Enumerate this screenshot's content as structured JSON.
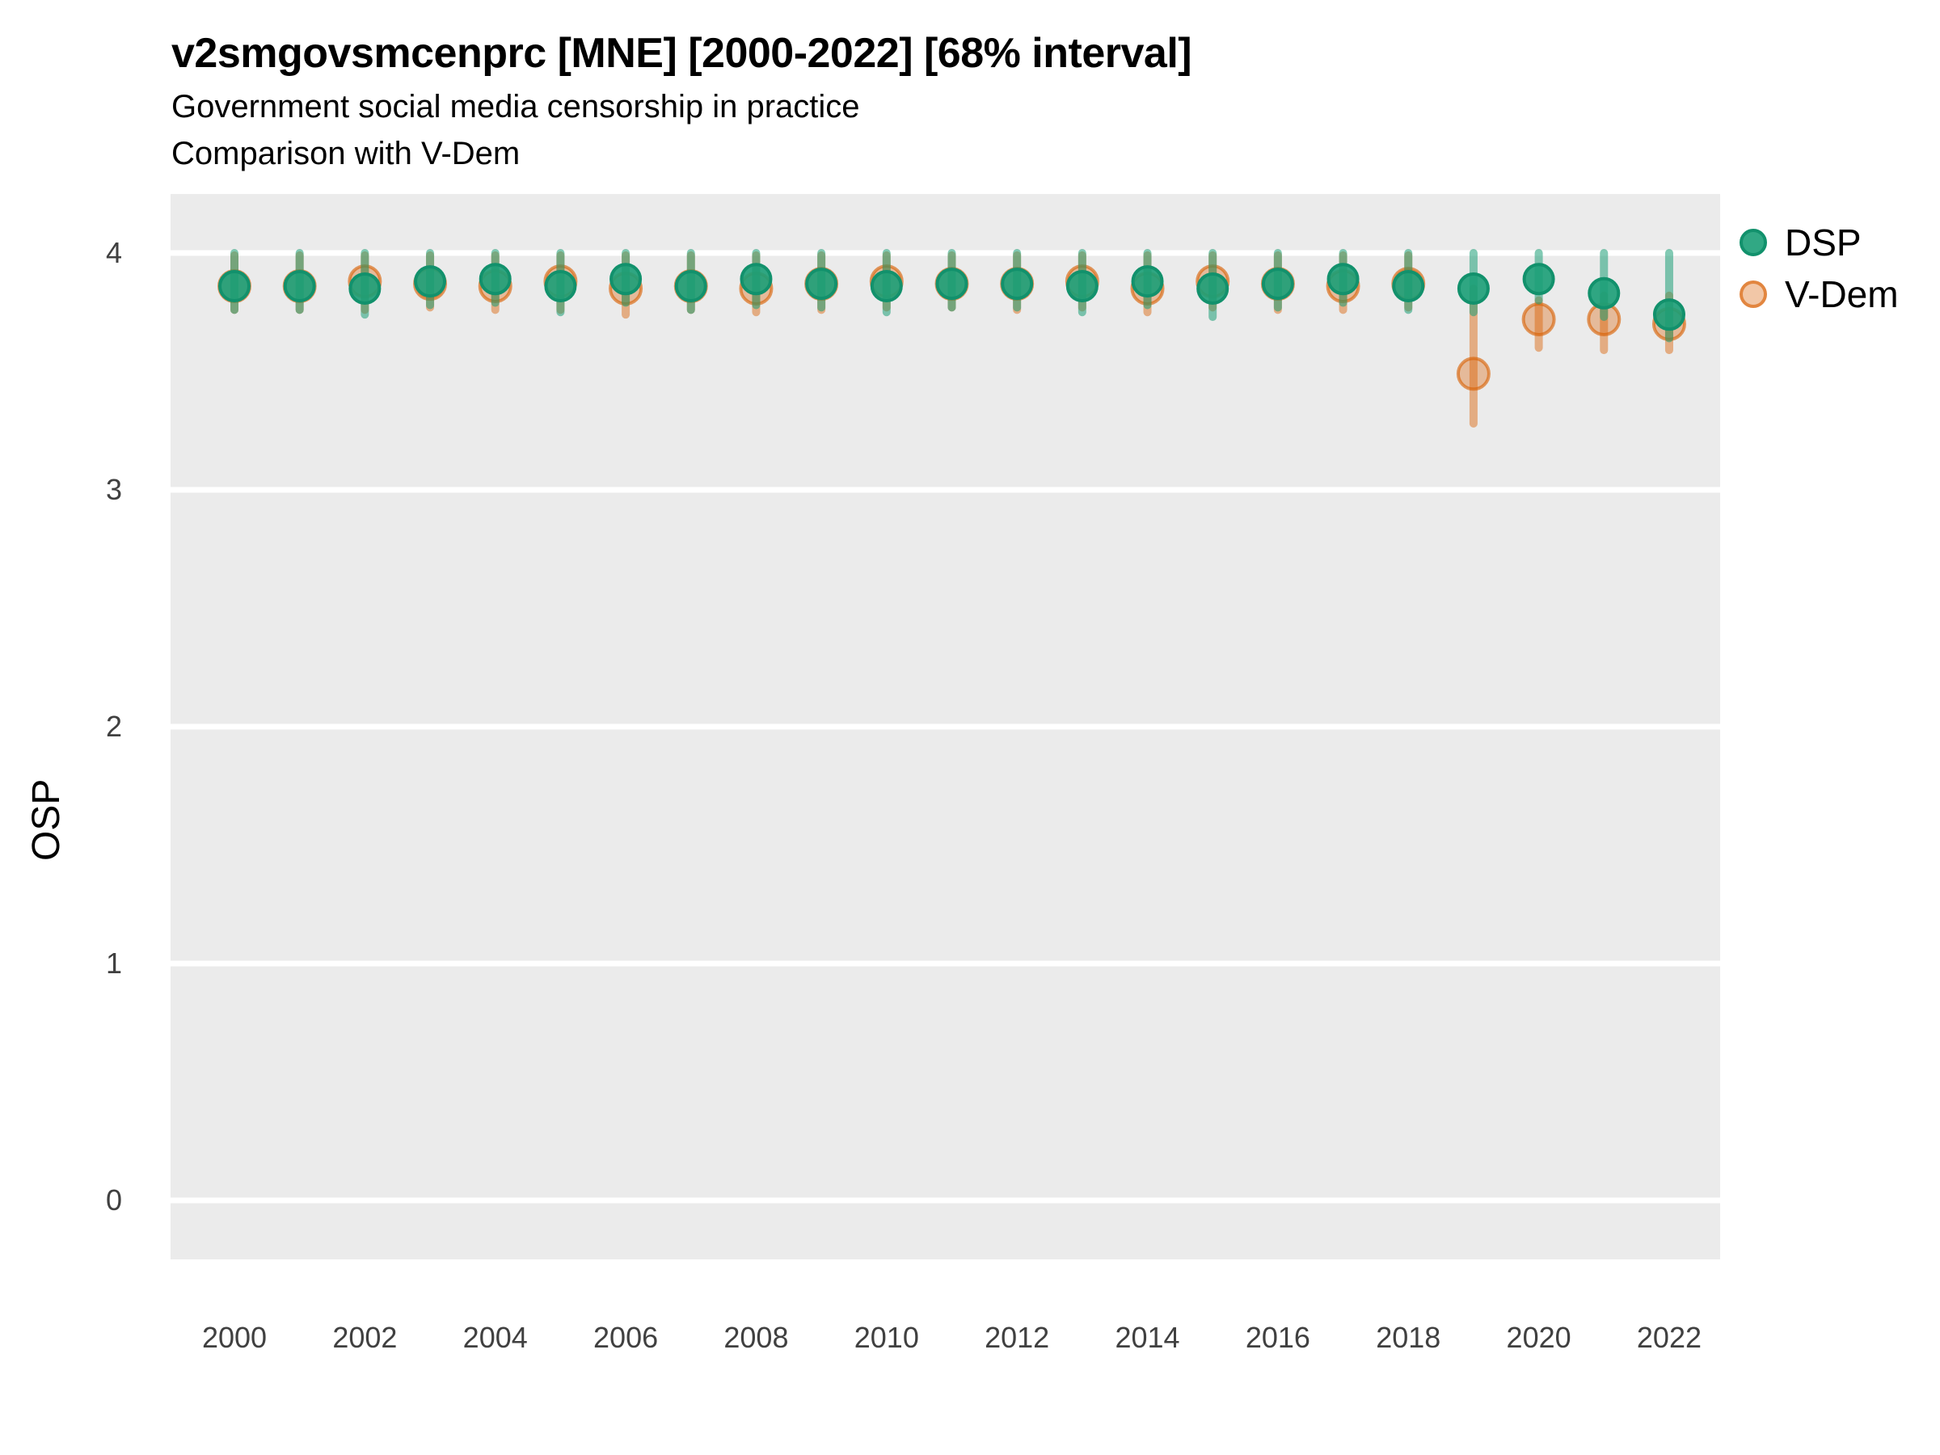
{
  "header": {
    "title": "v2smgovsmcenprc [MNE] [2000-2022] [68% interval]",
    "subtitle": "Government social media censorship in practice",
    "subtitle2": "Comparison with V-Dem"
  },
  "axes": {
    "y": {
      "label": "OSP",
      "ticks": [
        "4",
        "3",
        "2",
        "1",
        "0"
      ],
      "tick_values": [
        4,
        3,
        2,
        1,
        0
      ]
    },
    "x": {
      "ticks": [
        "2000",
        "2002",
        "2004",
        "2006",
        "2008",
        "2010",
        "2012",
        "2014",
        "2016",
        "2018",
        "2020",
        "2022"
      ],
      "tick_values": [
        2000,
        2002,
        2004,
        2006,
        2008,
        2010,
        2012,
        2014,
        2016,
        2018,
        2020,
        2022
      ]
    }
  },
  "legend": {
    "items": [
      {
        "label": "DSP",
        "color": "#1b9e77"
      },
      {
        "label": "V-Dem",
        "color": "#d95f02"
      }
    ]
  },
  "colors": {
    "panel_background": "#ebebeb",
    "grid_line": "#ffffff",
    "dsp": "#1b9e77",
    "vdem": "#d95f02",
    "axis_text": "#404040"
  },
  "chart_data": {
    "type": "scatter",
    "subtype": "pointrange",
    "title": "v2smgovsmcenprc [MNE] [2000-2022] [68% interval]",
    "subtitle": "Government social media censorship in practice",
    "annotation": "Comparison with V-Dem",
    "interval": "68%",
    "xlabel": "",
    "ylabel": "OSP",
    "ylim": [
      -0.25,
      4.25
    ],
    "xlim": [
      1999,
      2022.8
    ],
    "grid": "horizontal-major-only",
    "legend_position": "right-top",
    "x": [
      2000,
      2001,
      2002,
      2003,
      2004,
      2005,
      2006,
      2007,
      2008,
      2009,
      2010,
      2011,
      2012,
      2013,
      2014,
      2015,
      2016,
      2017,
      2018,
      2019,
      2020,
      2021,
      2022
    ],
    "series": [
      {
        "name": "V-Dem",
        "color": "#d95f02",
        "values": [
          3.86,
          3.86,
          3.88,
          3.87,
          3.86,
          3.88,
          3.85,
          3.86,
          3.85,
          3.87,
          3.88,
          3.87,
          3.87,
          3.88,
          3.85,
          3.88,
          3.87,
          3.86,
          3.87,
          3.49,
          3.72,
          3.72,
          3.7
        ],
        "lo": [
          3.76,
          3.76,
          3.76,
          3.77,
          3.76,
          3.76,
          3.74,
          3.76,
          3.75,
          3.76,
          3.77,
          3.77,
          3.76,
          3.77,
          3.75,
          3.77,
          3.76,
          3.76,
          3.77,
          3.28,
          3.6,
          3.59,
          3.59
        ],
        "hi": [
          3.99,
          3.99,
          3.99,
          3.99,
          3.99,
          3.99,
          3.99,
          3.99,
          3.99,
          3.99,
          3.99,
          3.99,
          3.99,
          3.99,
          3.99,
          3.99,
          3.99,
          3.99,
          3.99,
          3.85,
          3.8,
          3.82,
          3.82
        ]
      },
      {
        "name": "DSP",
        "color": "#1b9e77",
        "values": [
          3.86,
          3.86,
          3.85,
          3.88,
          3.89,
          3.86,
          3.89,
          3.86,
          3.89,
          3.87,
          3.86,
          3.87,
          3.87,
          3.86,
          3.88,
          3.85,
          3.87,
          3.89,
          3.86,
          3.85,
          3.89,
          3.83,
          3.74
        ],
        "lo": [
          3.76,
          3.76,
          3.74,
          3.78,
          3.79,
          3.75,
          3.79,
          3.76,
          3.78,
          3.77,
          3.75,
          3.77,
          3.77,
          3.75,
          3.78,
          3.73,
          3.77,
          3.79,
          3.76,
          3.75,
          3.8,
          3.73,
          3.64
        ],
        "hi": [
          4.0,
          4.0,
          4.0,
          4.0,
          4.0,
          4.0,
          4.0,
          4.0,
          4.0,
          4.0,
          4.0,
          4.0,
          4.0,
          4.0,
          4.0,
          4.0,
          4.0,
          4.0,
          4.0,
          4.0,
          4.0,
          4.0,
          4.0
        ]
      }
    ]
  }
}
